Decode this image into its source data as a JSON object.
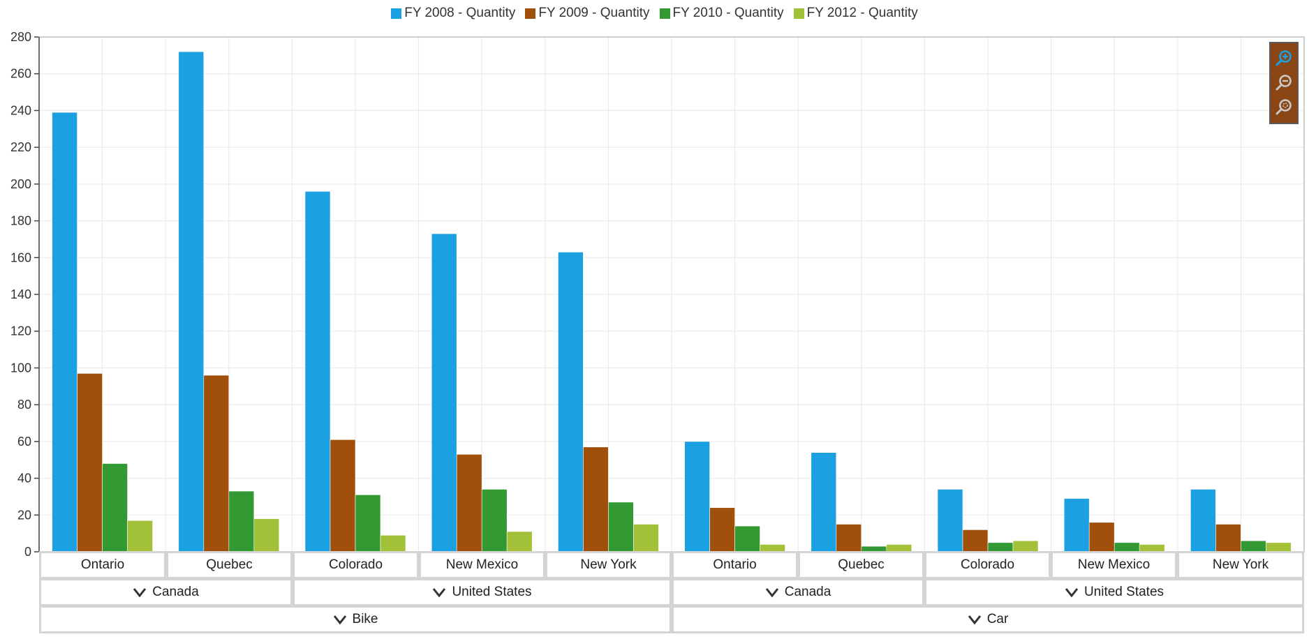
{
  "colors": {
    "fy2008": "#1ba1e2",
    "fy2009": "#a0500a",
    "fy2010": "#339933",
    "fy2012": "#a2c139",
    "toolbar_bg": "#8a4614",
    "grid": "#e8e8e8"
  },
  "toolbar": {
    "zoom_in_icon": "zoom-in-icon",
    "zoom_out_icon": "zoom-out-icon",
    "reset_zoom_icon": "reset-zoom-icon"
  },
  "chart_data": {
    "type": "bar",
    "title": "",
    "xlabel": "",
    "ylabel": "",
    "ylim": [
      0,
      280
    ],
    "yticks": [
      "0",
      "20",
      "40",
      "60",
      "80",
      "100",
      "120",
      "140",
      "160",
      "180",
      "200",
      "220",
      "240",
      "260",
      "280"
    ],
    "grid": true,
    "legend_position": "top-center",
    "categories": [
      "Ontario",
      "Quebec",
      "Colorado",
      "New Mexico",
      "New York",
      "Ontario",
      "Quebec",
      "Colorado",
      "New Mexico",
      "New York"
    ],
    "country_groups": [
      {
        "label": "Canada",
        "span": 2
      },
      {
        "label": "United States",
        "span": 3
      },
      {
        "label": "Canada",
        "span": 2
      },
      {
        "label": "United States",
        "span": 3
      }
    ],
    "vehicle_groups": [
      {
        "label": "Bike",
        "span": 5
      },
      {
        "label": "Car",
        "span": 5
      }
    ],
    "series": [
      {
        "name": "FY 2008 - Quantity",
        "color": "#1ba1e2",
        "values": [
          239,
          272,
          196,
          173,
          163,
          60,
          54,
          34,
          29,
          34
        ]
      },
      {
        "name": "FY 2009 - Quantity",
        "color": "#a0500a",
        "values": [
          97,
          96,
          61,
          53,
          57,
          24,
          15,
          12,
          16,
          15
        ]
      },
      {
        "name": "FY 2010 - Quantity",
        "color": "#339933",
        "values": [
          48,
          33,
          31,
          34,
          27,
          14,
          3,
          5,
          5,
          6
        ]
      },
      {
        "name": "FY 2012 - Quantity",
        "color": "#a2c139",
        "values": [
          17,
          18,
          9,
          11,
          15,
          4,
          4,
          6,
          4,
          5
        ]
      }
    ]
  }
}
